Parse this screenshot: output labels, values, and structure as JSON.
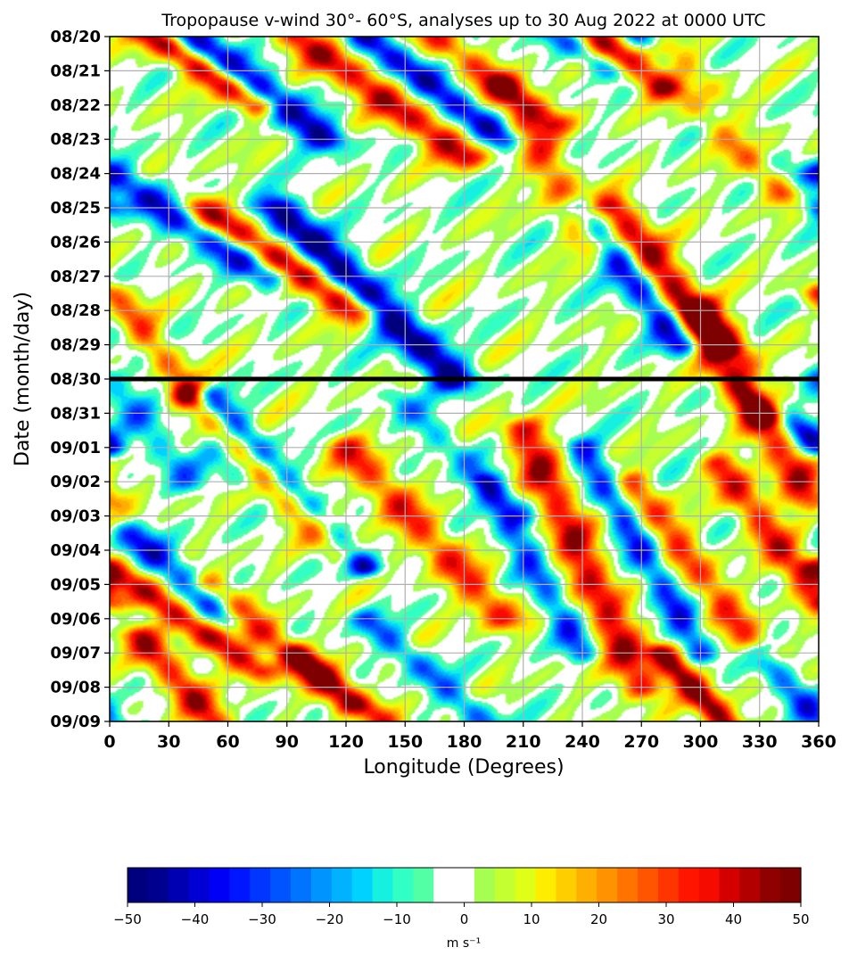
{
  "chart_data": {
    "type": "heatmap",
    "title": "Tropopause v-wind 30°- 60°S, analyses up to 30 Aug 2022 at 0000 UTC",
    "xlabel": "Longitude (Degrees)",
    "ylabel": "Date (month/day)",
    "xlim": [
      0,
      360
    ],
    "x_ticks": [
      "0",
      "30",
      "60",
      "90",
      "120",
      "150",
      "180",
      "210",
      "240",
      "270",
      "300",
      "330",
      "360"
    ],
    "y_ticks": [
      "08/20",
      "08/21",
      "08/22",
      "08/23",
      "08/24",
      "08/25",
      "08/26",
      "08/27",
      "08/28",
      "08/29",
      "08/30",
      "08/31",
      "09/01",
      "09/02",
      "09/03",
      "09/04",
      "09/05",
      "09/06",
      "09/07",
      "09/08",
      "09/09"
    ],
    "grid": true,
    "analysis_line_date": "08/30",
    "colorbar": {
      "range": [
        -50,
        50
      ],
      "step": 2.5,
      "ticks": [
        "−50",
        "−40",
        "−30",
        "−20",
        "−10",
        "0",
        "10",
        "20",
        "30",
        "40",
        "50"
      ],
      "unit": "m s⁻¹",
      "colors": [
        "#00007f",
        "#00008f",
        "#0000b2",
        "#0000d4",
        "#0000f6",
        "#0016ff",
        "#0036ff",
        "#0054ff",
        "#0074ff",
        "#0094ff",
        "#00b2ff",
        "#00d2ff",
        "#16f0e0",
        "#32ffc4",
        "#52ffa4",
        "#ffffff",
        "#ffffff",
        "#a6ff50",
        "#c4ff32",
        "#e0ff16",
        "#ffed00",
        "#ffce00",
        "#ffaf00",
        "#ff9200",
        "#ff7300",
        "#ff5400",
        "#ff3500",
        "#ff1600",
        "#f60b00",
        "#d40000",
        "#b20000",
        "#8f0000",
        "#7f0000"
      ]
    },
    "features": [
      {
        "lon0": 10,
        "d0": -0.5,
        "lon1": 75,
        "d1": 2,
        "amp": 48,
        "width": 7
      },
      {
        "lon0": 30,
        "d0": -0.5,
        "lon1": 110,
        "d1": 3,
        "amp": -45,
        "width": 8
      },
      {
        "lon0": 95,
        "d0": 0,
        "lon1": 180,
        "d1": 3.5,
        "amp": 40,
        "width": 8
      },
      {
        "lon0": 130,
        "d0": 0,
        "lon1": 200,
        "d1": 3,
        "amp": -40,
        "width": 7
      },
      {
        "lon0": 165,
        "d0": 0,
        "lon1": 225,
        "d1": 2.5,
        "amp": 30,
        "width": 7
      },
      {
        "lon0": 200,
        "d0": 1.5,
        "lon1": 245,
        "d1": 6,
        "amp": 28,
        "width": 8
      },
      {
        "lon0": 215,
        "d0": -0.5,
        "lon1": 255,
        "d1": 1,
        "amp": -25,
        "width": 6
      },
      {
        "lon0": 235,
        "d0": -0.5,
        "lon1": 280,
        "d1": 1.5,
        "amp": 38,
        "width": 7
      },
      {
        "lon0": 280,
        "d0": 0.5,
        "lon1": 345,
        "d1": 4.5,
        "amp": 40,
        "width": 8
      },
      {
        "lon0": 260,
        "d0": -0.5,
        "lon1": 360,
        "d1": 5,
        "amp": -30,
        "width": 6
      },
      {
        "lon0": 0,
        "d0": 4,
        "lon1": 80,
        "d1": 7,
        "amp": -40,
        "width": 8
      },
      {
        "lon0": 45,
        "d0": 5,
        "lon1": 125,
        "d1": 8,
        "amp": 45,
        "width": 8
      },
      {
        "lon0": 85,
        "d0": 5,
        "lon1": 175,
        "d1": 10,
        "amp": -50,
        "width": 8
      },
      {
        "lon0": 0,
        "d0": 7.5,
        "lon1": 40,
        "d1": 10.5,
        "amp": 38,
        "width": 7
      },
      {
        "lon0": 0,
        "d0": 8,
        "lon1": 70,
        "d1": 13,
        "amp": -20,
        "width": 7
      },
      {
        "lon0": 240,
        "d0": 5,
        "lon1": 290,
        "d1": 9,
        "amp": -40,
        "width": 7
      },
      {
        "lon0": 255,
        "d0": 5,
        "lon1": 335,
        "d1": 11,
        "amp": 45,
        "width": 8
      },
      {
        "lon0": 300,
        "d0": 8,
        "lon1": 360,
        "d1": 14,
        "amp": 38,
        "width": 8
      },
      {
        "lon0": 315,
        "d0": 9.5,
        "lon1": 360,
        "d1": 12,
        "amp": -40,
        "width": 6
      },
      {
        "lon0": 40,
        "d0": 10.5,
        "lon1": 120,
        "d1": 15,
        "amp": 42,
        "width": 8
      },
      {
        "lon0": 50,
        "d0": 10.5,
        "lon1": 130,
        "d1": 15.5,
        "amp": -48,
        "width": 6
      },
      {
        "lon0": 0,
        "d0": 10,
        "lon1": 40,
        "d1": 13,
        "amp": -20,
        "width": 7
      },
      {
        "lon0": 120,
        "d0": 12,
        "lon1": 200,
        "d1": 17,
        "amp": 32,
        "width": 8
      },
      {
        "lon0": 145,
        "d0": 10.5,
        "lon1": 210,
        "d1": 14,
        "amp": -18,
        "width": 6
      },
      {
        "lon0": 210,
        "d0": 11.5,
        "lon1": 270,
        "d1": 19,
        "amp": 40,
        "width": 8
      },
      {
        "lon0": 190,
        "d0": 13,
        "lon1": 240,
        "d1": 18,
        "amp": -28,
        "width": 6
      },
      {
        "lon0": 240,
        "d0": 12,
        "lon1": 300,
        "d1": 18,
        "amp": -32,
        "width": 6
      },
      {
        "lon0": 265,
        "d0": 13,
        "lon1": 330,
        "d1": 18,
        "amp": 30,
        "width": 7
      },
      {
        "lon0": 310,
        "d0": 12.5,
        "lon1": 360,
        "d1": 16.5,
        "amp": 35,
        "width": 7
      },
      {
        "lon0": 0,
        "d0": 14,
        "lon1": 60,
        "d1": 17,
        "amp": -35,
        "width": 7
      },
      {
        "lon0": 0,
        "d0": 15.5,
        "lon1": 75,
        "d1": 18.5,
        "amp": 40,
        "width": 7
      },
      {
        "lon0": 50,
        "d0": 16,
        "lon1": 120,
        "d1": 19.5,
        "amp": 35,
        "width": 7
      },
      {
        "lon0": 15,
        "d0": 17.5,
        "lon1": 60,
        "d1": 20.5,
        "amp": 38,
        "width": 7
      },
      {
        "lon0": 130,
        "d0": 17,
        "lon1": 200,
        "d1": 20.5,
        "amp": -25,
        "width": 6
      },
      {
        "lon0": 280,
        "d0": 18,
        "lon1": 320,
        "d1": 20.5,
        "amp": 50,
        "width": 6
      },
      {
        "lon0": 95,
        "d0": 18,
        "lon1": 150,
        "d1": 20.5,
        "amp": 28,
        "width": 6
      },
      {
        "lon0": 330,
        "d0": 18,
        "lon1": 360,
        "d1": 20,
        "amp": -30,
        "width": 6
      }
    ]
  }
}
